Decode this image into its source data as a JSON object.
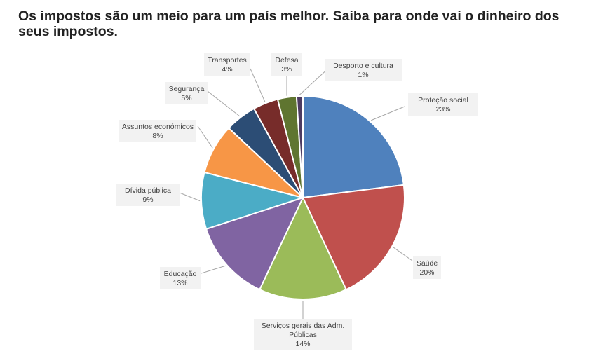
{
  "page": {
    "title": "Os impostos são um meio para um país melhor. Saiba para onde vai o dinheiro dos seus impostos."
  },
  "chart_data": {
    "type": "pie",
    "title": "",
    "start_angle_deg": 0,
    "direction": "clockwise",
    "slices": [
      {
        "label": [
          "Proteção social"
        ],
        "pct_label": "23%",
        "value": 23,
        "color": "#4f81bd"
      },
      {
        "label": [
          "Saúde"
        ],
        "pct_label": "20%",
        "value": 20,
        "color": "#c0504d"
      },
      {
        "label": [
          "Serviços gerais das Adm.",
          "Públicas"
        ],
        "pct_label": "14%",
        "value": 14,
        "color": "#9bbb59"
      },
      {
        "label": [
          "Educação"
        ],
        "pct_label": "13%",
        "value": 13,
        "color": "#8064a2"
      },
      {
        "label": [
          "Dívida pública"
        ],
        "pct_label": "9%",
        "value": 9,
        "color": "#4bacc6"
      },
      {
        "label": [
          "Assuntos económicos"
        ],
        "pct_label": "8%",
        "value": 8,
        "color": "#f79646"
      },
      {
        "label": [
          "Segurança"
        ],
        "pct_label": "5%",
        "value": 5,
        "color": "#2c4d75"
      },
      {
        "label": [
          "Transportes"
        ],
        "pct_label": "4%",
        "value": 4,
        "color": "#772c2a"
      },
      {
        "label": [
          "Defesa"
        ],
        "pct_label": "3%",
        "value": 3,
        "color": "#5f7530"
      },
      {
        "label": [
          "Desporto e cultura"
        ],
        "pct_label": "1%",
        "value": 1,
        "color": "#4d3b62"
      }
    ]
  }
}
